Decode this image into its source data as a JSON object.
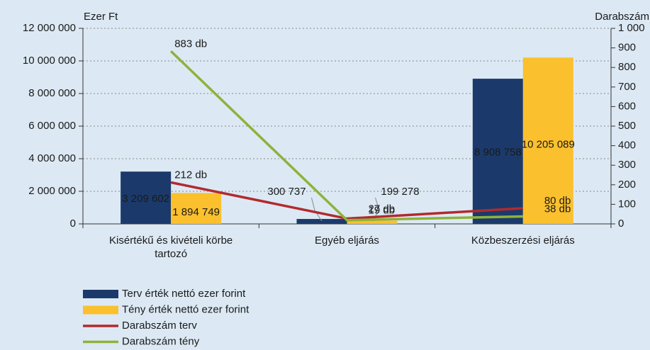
{
  "chart_data": {
    "type": "bar_line",
    "ylabel": "Ezer Ft",
    "y2label": "Darabszám",
    "categories": [
      "Kisértékű és kivételi körbe tartozó",
      "Egyéb eljárás",
      "Közbeszerzési eljárás"
    ],
    "series": [
      {
        "name": "Terv érték nettó ezer forint",
        "type": "bar",
        "color": "#1b3a6b",
        "values": [
          3209602,
          300737,
          8908758
        ],
        "value_labels": [
          "3 209 602",
          "300 737",
          "8 908 758"
        ]
      },
      {
        "name": "Tény érték nettó ezer forint",
        "type": "bar",
        "color": "#fbc02d",
        "values": [
          1894749,
          199278,
          10205089
        ],
        "value_labels": [
          "1 894 749",
          "199 278",
          "10 205 089"
        ]
      },
      {
        "name": "Darabszám terv",
        "type": "line",
        "axis": "y2",
        "color": "#b22a2e",
        "values": [
          212,
          27,
          80
        ],
        "value_labels": [
          "212 db",
          "27 db",
          "80 db"
        ]
      },
      {
        "name": "Darabszám tény",
        "type": "line",
        "axis": "y2",
        "color": "#8db33a",
        "values": [
          883,
          19,
          38
        ],
        "value_labels": [
          "883 db",
          "19 db",
          "38 db"
        ]
      }
    ],
    "ylim": [
      0,
      12000000
    ],
    "yticks": [
      0,
      {
        "value": 2000000,
        "label": "2 000 000"
      },
      {
        "value": 4000000,
        "label": "4 000 000"
      },
      {
        "value": 6000000,
        "label": "6 000 000"
      },
      {
        "value": 8000000,
        "label": "8 000 000"
      },
      {
        "value": 10000000,
        "label": "10 000 000"
      },
      {
        "value": 12000000,
        "label": "12 000 000"
      }
    ],
    "y2lim": [
      0,
      1000
    ],
    "y2ticks": [
      0,
      100,
      200,
      300,
      400,
      500,
      600,
      700,
      800,
      900,
      {
        "value": 1000,
        "label": "1 000"
      }
    ],
    "grid": true
  }
}
